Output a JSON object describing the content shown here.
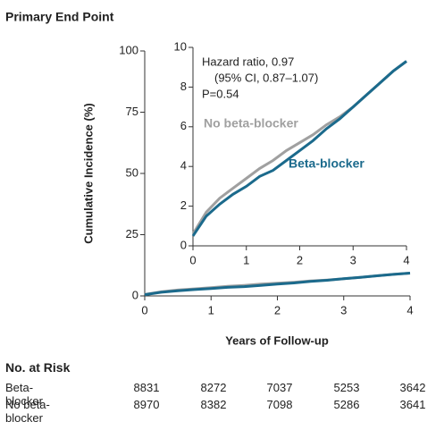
{
  "chart_data": [
    {
      "type": "line",
      "title": "Primary End Point",
      "ylabel": "Cumulative Incidence (%)",
      "xlabel": "Years of Follow-up",
      "xlim": [
        0,
        4
      ],
      "xticks": [
        0,
        1,
        2,
        3,
        4
      ],
      "ylim": [
        0,
        100
      ],
      "yticks": [
        0,
        25,
        50,
        75,
        100
      ],
      "x": [
        0,
        0.25,
        0.5,
        0.75,
        1,
        1.25,
        1.5,
        1.75,
        2,
        2.25,
        2.5,
        2.75,
        3,
        3.25,
        3.5,
        3.75,
        4
      ],
      "series": [
        {
          "color": "#a0a0a0",
          "values": [
            0.6,
            1.7,
            2.4,
            2.9,
            3.4,
            3.9,
            4.3,
            4.8,
            5.2,
            5.6,
            6.1,
            6.5,
            7.0,
            7.6,
            8.2,
            8.8,
            9.3
          ]
        },
        {
          "color": "#1b6a8c",
          "values": [
            0.5,
            1.5,
            2.1,
            2.6,
            3.0,
            3.5,
            3.8,
            4.3,
            4.8,
            5.3,
            5.9,
            6.4,
            7.0,
            7.6,
            8.2,
            8.8,
            9.3
          ]
        }
      ]
    },
    {
      "type": "line",
      "annotations": [
        "Hazard ratio, 0.97",
        "(95% CI, 0.87–1.07)",
        "P=0.54"
      ],
      "xlim": [
        0,
        4
      ],
      "xticks": [
        0,
        1,
        2,
        3,
        4
      ],
      "ylim": [
        0,
        10
      ],
      "yticks": [
        0,
        2,
        4,
        6,
        8,
        10
      ],
      "x": [
        0,
        0.25,
        0.5,
        0.75,
        1,
        1.25,
        1.5,
        1.75,
        2,
        2.25,
        2.5,
        2.75,
        3,
        3.25,
        3.5,
        3.75,
        4
      ],
      "series": [
        {
          "name": "No beta-blocker",
          "color": "#a0a0a0",
          "values": [
            0.6,
            1.7,
            2.4,
            2.9,
            3.4,
            3.9,
            4.3,
            4.8,
            5.2,
            5.6,
            6.1,
            6.5,
            7.0,
            7.6,
            8.2,
            8.8,
            9.3
          ]
        },
        {
          "name": "Beta-blocker",
          "color": "#1b6a8c",
          "values": [
            0.5,
            1.5,
            2.1,
            2.6,
            3.0,
            3.5,
            3.8,
            4.3,
            4.8,
            5.3,
            5.9,
            6.4,
            7.0,
            7.6,
            8.2,
            8.8,
            9.3
          ]
        }
      ]
    }
  ],
  "risk_table": {
    "title": "No. at Risk",
    "rows": [
      {
        "label": "Beta-blocker",
        "values": [
          8831,
          8272,
          7037,
          5253,
          3642
        ]
      },
      {
        "label": "No beta-blocker",
        "values": [
          8970,
          8382,
          7098,
          5286,
          3641
        ]
      }
    ]
  }
}
